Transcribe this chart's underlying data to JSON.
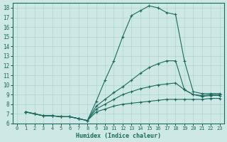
{
  "xlabel": "Humidex (Indice chaleur)",
  "bg_color": "#cde8e5",
  "grid_color": "#b0d4d0",
  "line_color": "#1a6b5e",
  "xlim": [
    -0.5,
    23.5
  ],
  "ylim": [
    6,
    18.5
  ],
  "yticks": [
    6,
    7,
    8,
    9,
    10,
    11,
    12,
    13,
    14,
    15,
    16,
    17,
    18
  ],
  "xticks": [
    0,
    1,
    2,
    3,
    4,
    5,
    6,
    7,
    8,
    9,
    10,
    11,
    12,
    13,
    14,
    15,
    16,
    17,
    18,
    19,
    20,
    21,
    22,
    23
  ],
  "series": [
    {
      "x": [
        1,
        2,
        3,
        4,
        5,
        6,
        7,
        8,
        9,
        10,
        11,
        12,
        13,
        14,
        15,
        16,
        17,
        18,
        19,
        20,
        21,
        22,
        23
      ],
      "y": [
        7.2,
        7.0,
        6.8,
        6.8,
        6.7,
        6.7,
        6.5,
        6.3,
        8.3,
        10.5,
        12.5,
        15.0,
        17.2,
        17.7,
        18.2,
        18.0,
        17.5,
        17.3,
        12.5,
        9.3,
        9.1,
        9.1,
        9.1
      ]
    },
    {
      "x": [
        1,
        2,
        3,
        4,
        5,
        6,
        7,
        8,
        9,
        10,
        11,
        12,
        13,
        14,
        15,
        16,
        17,
        18,
        19,
        20,
        21,
        22,
        23
      ],
      "y": [
        7.2,
        7.0,
        6.8,
        6.8,
        6.7,
        6.7,
        6.5,
        6.3,
        7.8,
        8.5,
        9.2,
        9.8,
        10.5,
        11.2,
        11.8,
        12.2,
        12.5,
        12.5,
        9.5,
        9.0,
        8.9,
        9.0,
        9.0
      ]
    },
    {
      "x": [
        1,
        2,
        3,
        4,
        5,
        6,
        7,
        8,
        9,
        10,
        11,
        12,
        13,
        14,
        15,
        16,
        17,
        18,
        19,
        20,
        21,
        22,
        23
      ],
      "y": [
        7.2,
        7.0,
        6.8,
        6.8,
        6.7,
        6.7,
        6.5,
        6.3,
        7.5,
        8.0,
        8.5,
        9.0,
        9.3,
        9.6,
        9.8,
        10.0,
        10.1,
        10.2,
        9.5,
        9.0,
        8.8,
        8.9,
        8.9
      ]
    },
    {
      "x": [
        1,
        2,
        3,
        4,
        5,
        6,
        7,
        8,
        9,
        10,
        11,
        12,
        13,
        14,
        15,
        16,
        17,
        18,
        19,
        20,
        21,
        22,
        23
      ],
      "y": [
        7.2,
        7.0,
        6.8,
        6.8,
        6.7,
        6.7,
        6.5,
        6.3,
        7.2,
        7.5,
        7.8,
        8.0,
        8.1,
        8.2,
        8.3,
        8.4,
        8.5,
        8.5,
        8.5,
        8.5,
        8.5,
        8.6,
        8.6
      ]
    }
  ]
}
